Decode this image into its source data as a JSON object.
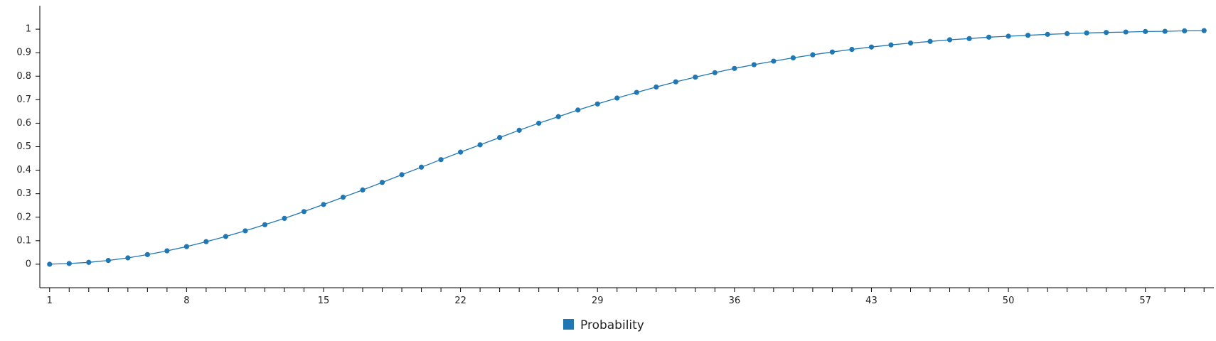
{
  "chart_data": {
    "type": "line",
    "title": "",
    "xlabel": "",
    "ylabel": "",
    "x": [
      1,
      2,
      3,
      4,
      5,
      6,
      7,
      8,
      9,
      10,
      11,
      12,
      13,
      14,
      15,
      16,
      17,
      18,
      19,
      20,
      21,
      22,
      23,
      24,
      25,
      26,
      27,
      28,
      29,
      30,
      31,
      32,
      33,
      34,
      35,
      36,
      37,
      38,
      39,
      40,
      41,
      42,
      43,
      44,
      45,
      46,
      47,
      48,
      49,
      50,
      51,
      52,
      53,
      54,
      55,
      56,
      57,
      58,
      59,
      60
    ],
    "xlim": [
      0.5,
      60.5
    ],
    "ylim": [
      -0.1,
      1.1
    ],
    "x_ticks": [
      1,
      8,
      15,
      22,
      29,
      36,
      43,
      50,
      57
    ],
    "x_ticks_labels": [
      "1",
      "8",
      "15",
      "22",
      "29",
      "36",
      "43",
      "50",
      "57"
    ],
    "y_ticks": [
      0,
      0.1,
      0.2,
      0.3,
      0.4,
      0.5,
      0.6,
      0.7,
      0.8,
      0.9,
      1
    ],
    "y_ticks_labels": [
      "0",
      "0.1",
      "0.2",
      "0.3",
      "0.4",
      "0.5",
      "0.6",
      "0.7",
      "0.8",
      "0.9",
      "1"
    ],
    "grid": false,
    "legend": "bottom-center",
    "series": [
      {
        "name": "Probability",
        "color": "#1f77b4",
        "values": [
          0.0,
          0.003,
          0.008,
          0.016,
          0.027,
          0.041,
          0.057,
          0.075,
          0.096,
          0.118,
          0.142,
          0.168,
          0.195,
          0.224,
          0.254,
          0.285,
          0.316,
          0.348,
          0.381,
          0.413,
          0.445,
          0.477,
          0.508,
          0.539,
          0.57,
          0.6,
          0.628,
          0.656,
          0.682,
          0.707,
          0.731,
          0.754,
          0.776,
          0.796,
          0.815,
          0.833,
          0.849,
          0.864,
          0.878,
          0.891,
          0.903,
          0.914,
          0.924,
          0.933,
          0.941,
          0.948,
          0.955,
          0.96,
          0.966,
          0.97,
          0.974,
          0.978,
          0.981,
          0.984,
          0.986,
          0.988,
          0.99,
          0.991,
          0.993,
          0.994
        ]
      }
    ]
  }
}
